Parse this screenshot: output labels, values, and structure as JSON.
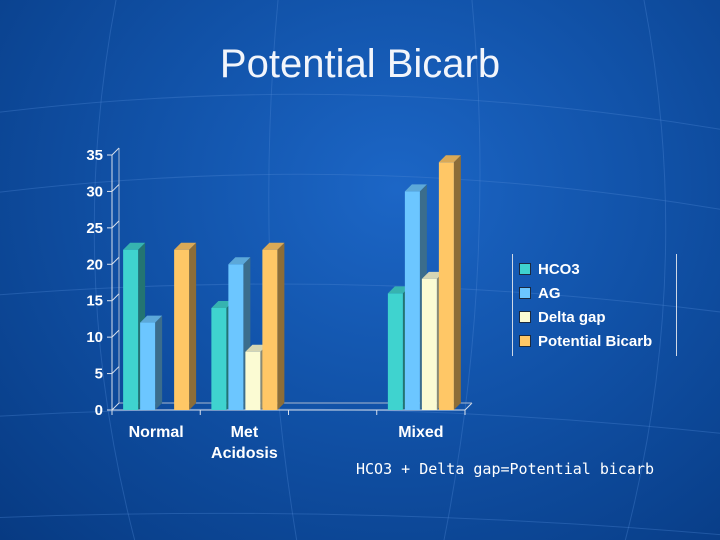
{
  "slide": {
    "title": "Potential Bicarb",
    "formula": "HCO3 + Delta gap=Potential bicarb"
  },
  "colors": {
    "HCO3": "#3fd3cf",
    "AG": "#6cc6ff",
    "Delta gap": "#fbfbd3",
    "Potential Bicarb": "#ffc766"
  },
  "chart_data": {
    "type": "bar",
    "categories": [
      "Normal",
      "Met Acidosis",
      "",
      "Mixed"
    ],
    "series": [
      {
        "name": "HCO3",
        "values": [
          22,
          14,
          null,
          16
        ]
      },
      {
        "name": "AG",
        "values": [
          12,
          20,
          null,
          30
        ]
      },
      {
        "name": "Delta gap",
        "values": [
          null,
          8,
          null,
          18
        ]
      },
      {
        "name": "Potential Bicarb",
        "values": [
          22,
          22,
          null,
          34
        ]
      }
    ],
    "ylim": [
      0,
      35
    ],
    "yticks": [
      0,
      5,
      10,
      15,
      20,
      25,
      30,
      35
    ],
    "grid": false,
    "legend": "right"
  }
}
